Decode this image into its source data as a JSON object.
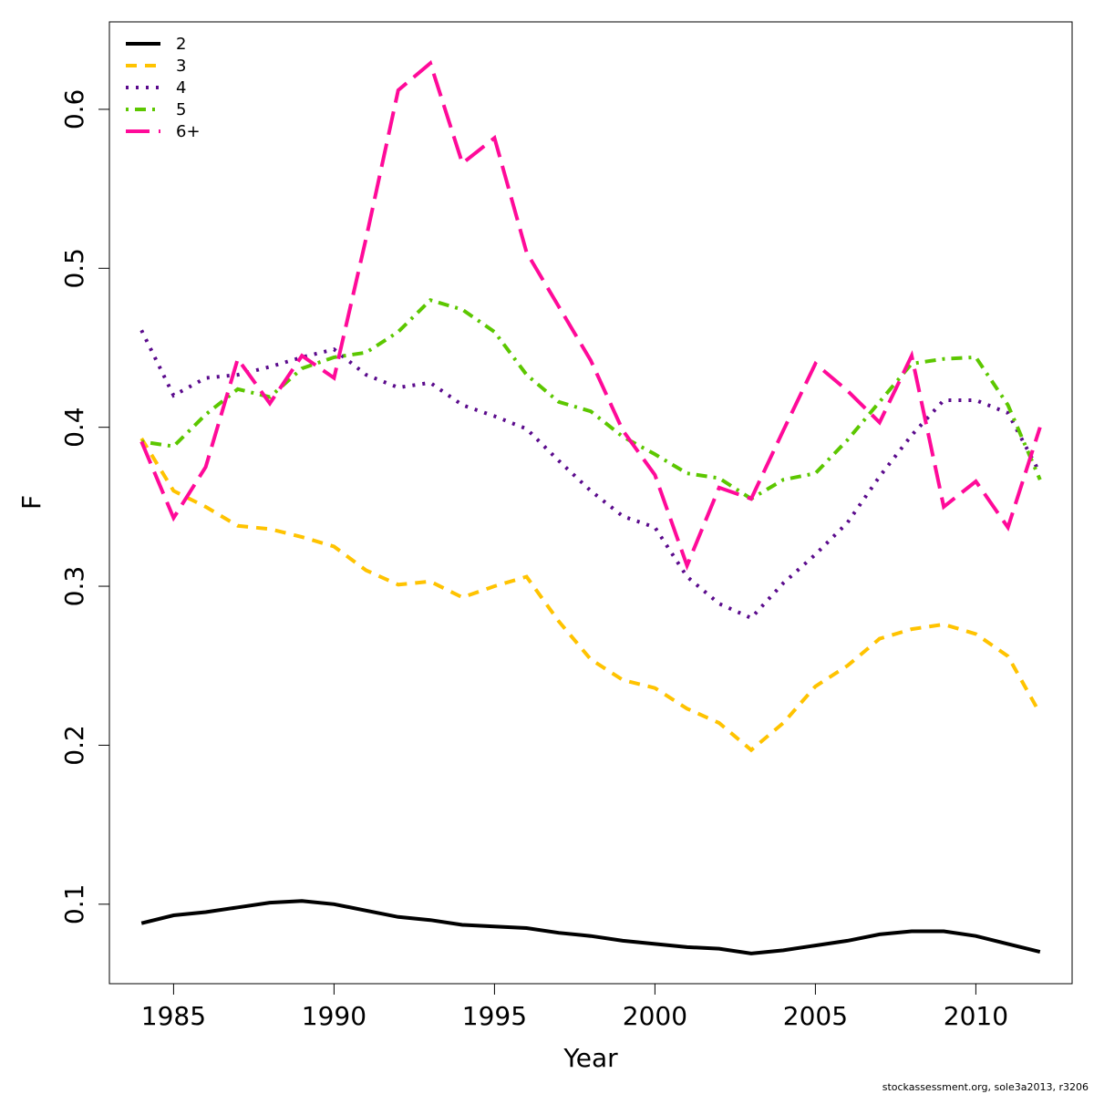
{
  "chart_data": {
    "type": "line",
    "title": "",
    "xlabel": "Year",
    "ylabel": "F",
    "xlim": [
      1983,
      2013
    ],
    "ylim": [
      0.05,
      0.655
    ],
    "xticks": [
      1985,
      1990,
      1995,
      2000,
      2005,
      2010
    ],
    "yticks": [
      0.1,
      0.2,
      0.3,
      0.4,
      0.5,
      0.6
    ],
    "ytick_labels": [
      "0.1",
      "0.2",
      "0.3",
      "0.4",
      "0.5",
      "0.6"
    ],
    "grid": false,
    "legend_position": "top-left",
    "x": [
      1984,
      1985,
      1986,
      1987,
      1988,
      1989,
      1990,
      1991,
      1992,
      1993,
      1994,
      1995,
      1996,
      1997,
      1998,
      1999,
      2000,
      2001,
      2002,
      2003,
      2004,
      2005,
      2006,
      2007,
      2008,
      2009,
      2010,
      2011,
      2012
    ],
    "series": [
      {
        "name": "2",
        "color": "#000000",
        "dash": "solid",
        "values": [
          0.088,
          0.093,
          0.095,
          0.098,
          0.101,
          0.102,
          0.1,
          0.096,
          0.092,
          0.09,
          0.087,
          0.086,
          0.085,
          0.082,
          0.08,
          0.077,
          0.075,
          0.073,
          0.072,
          0.069,
          0.071,
          0.074,
          0.077,
          0.081,
          0.083,
          0.083,
          0.08,
          0.075,
          0.07
        ]
      },
      {
        "name": "3",
        "color": "#FFC300",
        "dash": "dashed",
        "values": [
          0.393,
          0.36,
          0.35,
          0.338,
          0.336,
          0.331,
          0.325,
          0.31,
          0.301,
          0.303,
          0.293,
          0.3,
          0.306,
          0.278,
          0.254,
          0.241,
          0.236,
          0.223,
          0.214,
          0.197,
          0.214,
          0.237,
          0.25,
          0.267,
          0.273,
          0.276,
          0.27,
          0.256,
          0.22
        ]
      },
      {
        "name": "4",
        "color": "#5A0A8C",
        "dash": "dotted",
        "values": [
          0.461,
          0.42,
          0.431,
          0.433,
          0.438,
          0.444,
          0.449,
          0.433,
          0.425,
          0.428,
          0.414,
          0.407,
          0.399,
          0.379,
          0.36,
          0.344,
          0.337,
          0.306,
          0.289,
          0.28,
          0.302,
          0.32,
          0.34,
          0.369,
          0.395,
          0.417,
          0.417,
          0.409,
          0.371
        ]
      },
      {
        "name": "5",
        "color": "#5CC700",
        "dash": "dotdash",
        "values": [
          0.391,
          0.388,
          0.408,
          0.424,
          0.419,
          0.437,
          0.444,
          0.447,
          0.46,
          0.48,
          0.474,
          0.46,
          0.433,
          0.416,
          0.41,
          0.394,
          0.383,
          0.371,
          0.368,
          0.355,
          0.367,
          0.371,
          0.392,
          0.416,
          0.44,
          0.443,
          0.444,
          0.414,
          0.367
        ]
      },
      {
        "name": "6+",
        "color": "#FF0A99",
        "dash": "longdash",
        "values": [
          0.391,
          0.343,
          0.375,
          0.443,
          0.415,
          0.445,
          0.431,
          0.519,
          0.612,
          0.629,
          0.566,
          0.582,
          0.51,
          0.476,
          0.442,
          0.398,
          0.37,
          0.313,
          0.362,
          0.355,
          0.398,
          0.44,
          0.423,
          0.403,
          0.445,
          0.35,
          0.366,
          0.337,
          0.4
        ]
      }
    ]
  },
  "credit": "stockassessment.org, sole3a2013, r3206"
}
